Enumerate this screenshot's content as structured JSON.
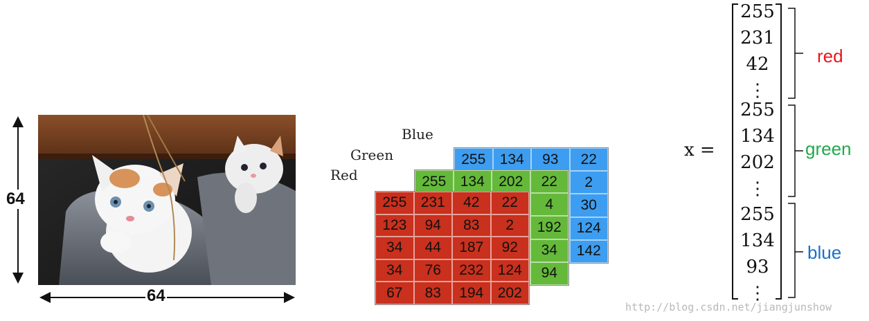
{
  "image": {
    "height_label": "64",
    "width_label": "64"
  },
  "channels": {
    "blue": {
      "title": "Blue",
      "rows": [
        [
          "255",
          "134",
          "93",
          "22"
        ],
        [
          "",
          "",
          "",
          "2"
        ],
        [
          "",
          "",
          "",
          "30"
        ],
        [
          "",
          "",
          "",
          "124"
        ],
        [
          "",
          "",
          "",
          "142"
        ]
      ]
    },
    "green": {
      "title": "Green",
      "rows": [
        [
          "255",
          "134",
          "202",
          "22"
        ],
        [
          "",
          "",
          "",
          "4"
        ],
        [
          "",
          "",
          "",
          "192"
        ],
        [
          "",
          "",
          "",
          "34"
        ],
        [
          "",
          "",
          "",
          "94"
        ]
      ]
    },
    "red": {
      "title": "Red",
      "rows": [
        [
          "255",
          "231",
          "42",
          "22"
        ],
        [
          "123",
          "94",
          "83",
          "2"
        ],
        [
          "34",
          "44",
          "187",
          "92"
        ],
        [
          "34",
          "76",
          "232",
          "124"
        ],
        [
          "67",
          "83",
          "194",
          "202"
        ]
      ]
    }
  },
  "vector": {
    "lhs": "x =",
    "red_values": [
      "255",
      "231",
      "42",
      "⋮"
    ],
    "green_values": [
      "255",
      "134",
      "202",
      "⋮"
    ],
    "blue_values": [
      "255",
      "134",
      "93",
      "⋮"
    ],
    "labels": {
      "red": "red",
      "green": "green",
      "blue": "blue"
    }
  },
  "watermark": "http://blog.csdn.net/jiangjunshow",
  "colors": {
    "red_label": "#e8161a",
    "green_label": "#1faa4a",
    "blue_label": "#1a6fc9",
    "blue_cells": "#3d9df0",
    "green_cells": "#64b93a",
    "red_cells": "#c9301d"
  }
}
